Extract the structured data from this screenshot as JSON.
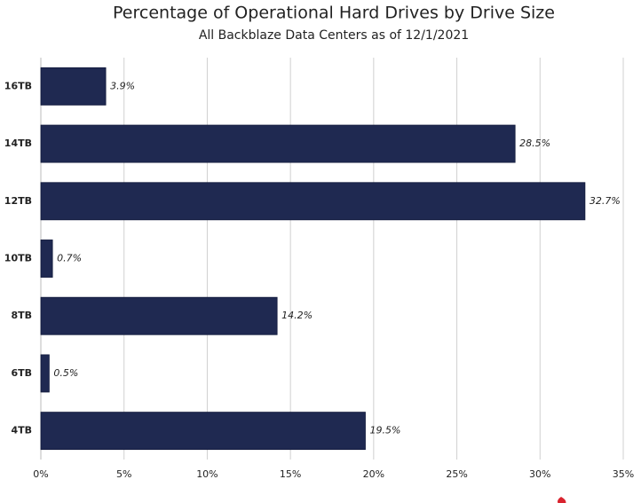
{
  "chart_data": {
    "type": "bar",
    "orientation": "horizontal",
    "title": "Percentage of Operational Hard Drives by Drive Size",
    "subtitle": "All Backblaze Data Centers as of 12/1/2021",
    "categories": [
      "16TB",
      "14TB",
      "12TB",
      "10TB",
      "8TB",
      "6TB",
      "4TB"
    ],
    "values": [
      3.9,
      28.5,
      32.7,
      0.7,
      14.2,
      0.5,
      19.5
    ],
    "value_labels": [
      "3.9%",
      "28.5%",
      "32.7%",
      "0.7%",
      "14.2%",
      "0.5%",
      "19.5%"
    ],
    "color": "#1f2951",
    "xlim": [
      0,
      35
    ],
    "xticks": [
      {
        "value": 0,
        "label": "0%"
      },
      {
        "value": 5,
        "label": "5%"
      },
      {
        "value": 10,
        "label": "10%"
      },
      {
        "value": 15,
        "label": "15%"
      },
      {
        "value": 20,
        "label": "20%"
      },
      {
        "value": 25,
        "label": "25%"
      },
      {
        "value": 30,
        "label": "30%"
      },
      {
        "value": 35,
        "label": "35%"
      }
    ],
    "grid": true
  }
}
